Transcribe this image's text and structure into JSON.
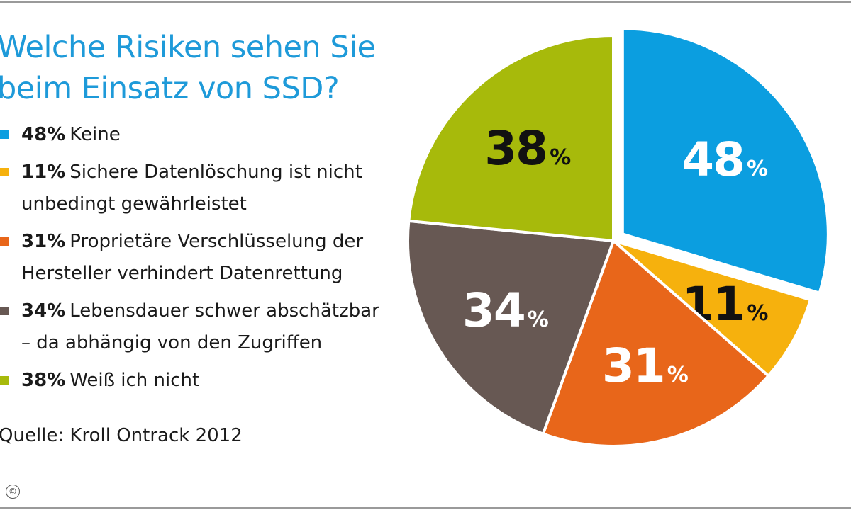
{
  "title": {
    "line1": "Welche Risiken sehen Sie",
    "line2": "beim Einsatz von SSD?"
  },
  "legend": [
    {
      "pct": "48%",
      "text": "Keine",
      "line2": ""
    },
    {
      "pct": "11%",
      "text": "Sichere Datenlöschung ist nicht",
      "line2": "unbedingt gewährleistet"
    },
    {
      "pct": "31%",
      "text": "Proprietäre Verschlüsselung der",
      "line2": "Hersteller verhindert Datenrettung"
    },
    {
      "pct": "34%",
      "text": "Lebensdauer schwer abschätzbar",
      "line2": "– da abhängig von den Zugriffen"
    },
    {
      "pct": "38%",
      "text": "Weiß ich nicht",
      "line2": ""
    }
  ],
  "source": "Quelle: Kroll Ontrack 2012",
  "copyright_symbol": "©",
  "chart_data": {
    "type": "pie",
    "categories": [
      "Keine",
      "Sichere Datenlöschung ist nicht unbedingt gewährleistet",
      "Proprietäre Verschlüsselung der Hersteller verhindert Datenrettung",
      "Lebensdauer schwer abschätzbar – da abhängig von den Zugriffen",
      "Weiß ich nicht"
    ],
    "values": [
      48,
      11,
      31,
      34,
      38
    ],
    "labels": [
      "48",
      "11",
      "31",
      "34",
      "38"
    ],
    "unit": "%",
    "colors": [
      "#0b9ee0",
      "#f6b10d",
      "#e8661a",
      "#675853",
      "#a7ba0b"
    ],
    "label_colors": [
      "#ffffff",
      "#111111",
      "#ffffff",
      "#ffffff",
      "#111111"
    ],
    "exploded_slice": "Keine",
    "title": "Welche Risiken sehen Sie beim Einsatz von SSD?"
  }
}
